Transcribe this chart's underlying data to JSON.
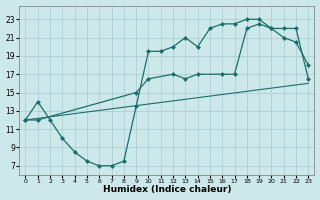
{
  "xlabel": "Humidex (Indice chaleur)",
  "bg_color": "#cce8ea",
  "grid_color": "#b0d0d3",
  "line_color": "#1a6e6a",
  "xlim": [
    -0.5,
    23.5
  ],
  "ylim": [
    6,
    24.5
  ],
  "yticks": [
    7,
    9,
    11,
    13,
    15,
    17,
    19,
    21,
    23
  ],
  "xticks": [
    0,
    1,
    2,
    3,
    4,
    5,
    6,
    7,
    8,
    9,
    10,
    11,
    12,
    13,
    14,
    15,
    16,
    17,
    18,
    19,
    20,
    21,
    22,
    23
  ],
  "line1_x": [
    0,
    1,
    2,
    3,
    4,
    5,
    6,
    7,
    8,
    9,
    10,
    11,
    12,
    13,
    14,
    15,
    16,
    17,
    18,
    19,
    20,
    21,
    22,
    23
  ],
  "line1_y": [
    12,
    14,
    12,
    10,
    8.5,
    7.5,
    7,
    7,
    7.5,
    13.5,
    19.5,
    19.5,
    20,
    21,
    20,
    22,
    22.5,
    22.5,
    23,
    23,
    22,
    21,
    20.5,
    18
  ],
  "line2_x": [
    0,
    1,
    9,
    10,
    12,
    13,
    14,
    16,
    17,
    18,
    19,
    20,
    21,
    22,
    23
  ],
  "line2_y": [
    12,
    12,
    15,
    16.5,
    17,
    16.5,
    17,
    17,
    17,
    22,
    22.5,
    22,
    22,
    22,
    16.5
  ],
  "line3_x": [
    0,
    23
  ],
  "line3_y": [
    12,
    16
  ]
}
